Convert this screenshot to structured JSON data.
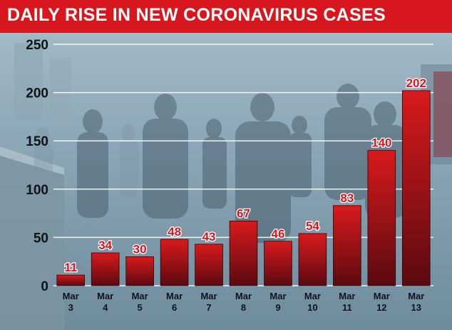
{
  "title": "DAILY RISE IN NEW CORONAVIRUS CASES",
  "colors": {
    "banner": "#d7161d",
    "bar_top": "#d81a1c",
    "bar_bottom": "#5a0a10",
    "value_label": "#d7161d",
    "axis_text": "#0f1418",
    "gridline": "#ffffff"
  },
  "chart_data": {
    "type": "bar",
    "title": "DAILY RISE IN NEW CORONAVIRUS CASES",
    "categories": [
      "Mar 3",
      "Mar 4",
      "Mar 5",
      "Mar 6",
      "Mar 7",
      "Mar 8",
      "Mar 9",
      "Mar 10",
      "Mar 11",
      "Mar 12",
      "Mar 13"
    ],
    "category_lines": [
      [
        "Mar",
        "3"
      ],
      [
        "Mar",
        "4"
      ],
      [
        "Mar",
        "5"
      ],
      [
        "Mar",
        "6"
      ],
      [
        "Mar",
        "7"
      ],
      [
        "Mar",
        "8"
      ],
      [
        "Mar",
        "9"
      ],
      [
        "Mar",
        "10"
      ],
      [
        "Mar",
        "11"
      ],
      [
        "Mar",
        "12"
      ],
      [
        "Mar",
        "13"
      ]
    ],
    "values": [
      11,
      34,
      30,
      48,
      43,
      67,
      46,
      54,
      83,
      140,
      202
    ],
    "yticks": [
      0,
      50,
      100,
      150,
      200,
      250
    ],
    "ylim": [
      0,
      250
    ],
    "xlabel": "",
    "ylabel": "",
    "grid": true,
    "data_labels": true,
    "background": "photo of commuters walking across a bridge"
  }
}
